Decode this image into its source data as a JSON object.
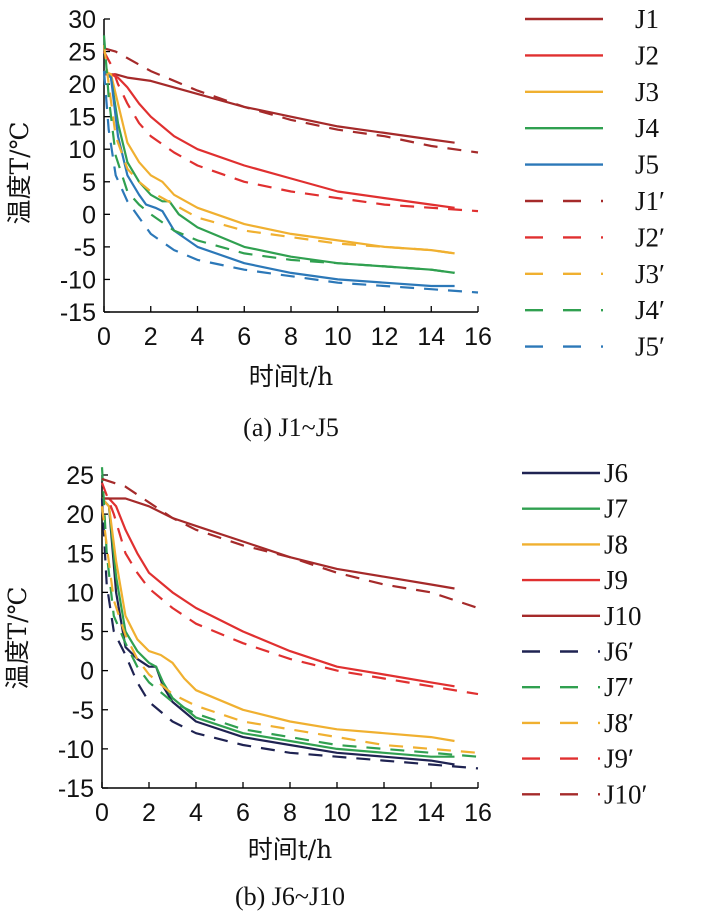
{
  "chart_data": [
    {
      "type": "line",
      "caption": "(a) J1~J5",
      "xlabel": "时间t/h",
      "ylabel": "温度T/℃",
      "xlim": [
        0,
        16
      ],
      "ylim": [
        -15,
        30
      ],
      "xticks": [
        "0",
        "2",
        "4",
        "6",
        "8",
        "10",
        "12",
        "14",
        "16"
      ],
      "yticks": [
        "30",
        "25",
        "20",
        "15",
        "10",
        "5",
        "0",
        "-5",
        "-10",
        "-15"
      ],
      "legend_position": "right",
      "series": [
        {
          "name": "J1",
          "style": "solid",
          "color": "#a52a2a",
          "x": [
            0,
            0.5,
            1,
            2,
            3,
            4,
            6,
            8,
            10,
            12,
            14,
            15
          ],
          "y": [
            21.5,
            21.5,
            21,
            20.5,
            19.5,
            18.5,
            16.5,
            15,
            13.5,
            12.5,
            11.5,
            11
          ]
        },
        {
          "name": "J2",
          "style": "solid",
          "color": "#e03030",
          "x": [
            0,
            0.3,
            0.6,
            1,
            1.5,
            2,
            3,
            4,
            6,
            8,
            10,
            12,
            14,
            15
          ],
          "y": [
            21.5,
            21.5,
            21,
            19.5,
            17,
            15,
            12,
            10,
            7.5,
            5.5,
            3.5,
            2.5,
            1.5,
            1
          ]
        },
        {
          "name": "J3",
          "style": "solid",
          "color": "#f0b030",
          "x": [
            0,
            0.3,
            0.6,
            1,
            1.5,
            2,
            2.5,
            3,
            4,
            6,
            8,
            10,
            12,
            14,
            15
          ],
          "y": [
            22,
            21.5,
            17,
            11,
            8,
            6,
            5,
            3,
            1,
            -1.5,
            -3,
            -4,
            -5,
            -5.5,
            -6
          ]
        },
        {
          "name": "J4",
          "style": "solid",
          "color": "#30a050",
          "x": [
            0,
            0.3,
            0.6,
            1,
            1.5,
            2,
            2.5,
            2.8,
            3.2,
            4,
            6,
            8,
            10,
            12,
            14,
            15
          ],
          "y": [
            22,
            21,
            14,
            8,
            5,
            3,
            2,
            2,
            0,
            -2,
            -5,
            -6.5,
            -7.5,
            -8,
            -8.5,
            -9
          ]
        },
        {
          "name": "J5",
          "style": "solid",
          "color": "#2c78b8",
          "x": [
            0,
            0.3,
            0.6,
            1,
            1.5,
            1.8,
            2.2,
            2.5,
            3,
            4,
            6,
            8,
            10,
            12,
            14,
            15
          ],
          "y": [
            22,
            21,
            12,
            6,
            3,
            1.5,
            1,
            0.5,
            -2.5,
            -5,
            -7.5,
            -9,
            -10,
            -10.5,
            -11,
            -11
          ]
        },
        {
          "name": "J1′",
          "style": "dashed",
          "color": "#a52a2a",
          "x": [
            0,
            0.5,
            1,
            2,
            4,
            6,
            8,
            10,
            12,
            14,
            16
          ],
          "y": [
            25.5,
            25,
            24,
            22,
            19,
            16.5,
            14.5,
            13,
            12,
            10.5,
            9.5
          ]
        },
        {
          "name": "J2′",
          "style": "dashed",
          "color": "#e03030",
          "x": [
            0,
            0.3,
            0.6,
            1,
            1.5,
            2,
            3,
            4,
            6,
            8,
            10,
            12,
            14,
            16
          ],
          "y": [
            25,
            23,
            20,
            17,
            14,
            12,
            9.5,
            7.5,
            5,
            3.5,
            2.5,
            1.5,
            1,
            0.5
          ]
        },
        {
          "name": "J3′",
          "style": "dashed",
          "color": "#f0b030",
          "x": [
            0,
            0.2,
            0.5,
            1,
            1.5,
            2,
            3,
            4,
            6,
            8,
            10,
            12,
            14,
            15
          ],
          "y": [
            26,
            20,
            12,
            7,
            5,
            3.5,
            1.5,
            -0.5,
            -2.5,
            -3.5,
            -4.5,
            -5,
            -5.5,
            -6
          ]
        },
        {
          "name": "J4′",
          "style": "dashed",
          "color": "#30a050",
          "x": [
            0,
            0.2,
            0.5,
            1,
            1.5,
            2,
            3,
            4,
            6,
            8,
            10,
            12,
            14,
            15
          ],
          "y": [
            27.5,
            18,
            9,
            3.5,
            1.5,
            0,
            -2.5,
            -4,
            -6,
            -7,
            -7.5,
            -8,
            -8.5,
            -9
          ]
        },
        {
          "name": "J5′",
          "style": "dashed",
          "color": "#2c78b8",
          "x": [
            0,
            0.2,
            0.5,
            1,
            1.5,
            2,
            3,
            4,
            6,
            8,
            10,
            12,
            14,
            16
          ],
          "y": [
            22,
            13,
            6,
            2,
            -0.5,
            -3,
            -5.5,
            -7,
            -8.5,
            -9.5,
            -10.5,
            -11,
            -11.5,
            -12
          ]
        }
      ]
    },
    {
      "type": "line",
      "caption": "(b) J6~J10",
      "xlabel": "时间t/h",
      "ylabel": "温度T/℃",
      "xlim": [
        0,
        16
      ],
      "ylim": [
        -15,
        25
      ],
      "xticks": [
        "0",
        "2",
        "4",
        "6",
        "8",
        "10",
        "12",
        "14",
        "16"
      ],
      "yticks": [
        "25",
        "20",
        "15",
        "10",
        "5",
        "0",
        "-5",
        "-10",
        "-15"
      ],
      "legend_position": "right",
      "series": [
        {
          "name": "J6",
          "style": "solid",
          "color": "#1f2352",
          "x": [
            0,
            0.3,
            0.6,
            1,
            1.5,
            2,
            2.3,
            2.6,
            3,
            4,
            6,
            8,
            10,
            12,
            14,
            15
          ],
          "y": [
            22,
            21,
            10,
            3,
            1.5,
            0.5,
            0.5,
            -2,
            -4,
            -6.5,
            -8.5,
            -9.5,
            -10.5,
            -11,
            -11.5,
            -12
          ]
        },
        {
          "name": "J7",
          "style": "solid",
          "color": "#30a050",
          "x": [
            0,
            0.3,
            0.6,
            1,
            1.5,
            2,
            2.3,
            2.6,
            3,
            4,
            6,
            8,
            10,
            12,
            14,
            15
          ],
          "y": [
            22,
            21,
            12,
            5,
            2.5,
            1,
            0.5,
            -1.5,
            -3.5,
            -6,
            -8,
            -9,
            -10,
            -10.5,
            -11,
            -11
          ]
        },
        {
          "name": "J8",
          "style": "solid",
          "color": "#f0b030",
          "x": [
            0,
            0.3,
            0.6,
            1,
            1.5,
            2,
            2.5,
            3,
            3.5,
            4,
            6,
            8,
            10,
            12,
            14,
            15
          ],
          "y": [
            22,
            21,
            14,
            7,
            4,
            2.5,
            2,
            1,
            -1,
            -2.5,
            -5,
            -6.5,
            -7.5,
            -8,
            -8.5,
            -9
          ]
        },
        {
          "name": "J9",
          "style": "solid",
          "color": "#e03030",
          "x": [
            0,
            0.3,
            0.6,
            1,
            1.5,
            2,
            3,
            4,
            6,
            8,
            10,
            12,
            14,
            15
          ],
          "y": [
            22,
            22,
            21,
            18,
            15,
            12.5,
            10,
            8,
            5,
            2.5,
            0.5,
            -0.5,
            -1.5,
            -2
          ]
        },
        {
          "name": "J10",
          "style": "solid",
          "color": "#a52a2a",
          "x": [
            0,
            0.5,
            1,
            2,
            3,
            4,
            6,
            8,
            10,
            12,
            14,
            15
          ],
          "y": [
            22,
            22,
            22,
            21,
            19.5,
            18.5,
            16.5,
            14.5,
            13,
            12,
            11,
            10.5
          ]
        },
        {
          "name": "J6′",
          "style": "dashed",
          "color": "#1f2352",
          "x": [
            0,
            0.2,
            0.5,
            1,
            1.5,
            2,
            3,
            4,
            6,
            8,
            10,
            12,
            14,
            16
          ],
          "y": [
            22,
            11,
            5,
            2,
            -1.5,
            -4,
            -6.5,
            -8,
            -9.5,
            -10.5,
            -11,
            -11.5,
            -12,
            -12.5
          ]
        },
        {
          "name": "J7′",
          "style": "dashed",
          "color": "#30a050",
          "x": [
            0,
            0.2,
            0.5,
            1,
            1.5,
            2,
            3,
            4,
            6,
            8,
            10,
            12,
            14,
            16
          ],
          "y": [
            26,
            15,
            7,
            3.5,
            0.5,
            -1.5,
            -4,
            -5.5,
            -7.5,
            -8.5,
            -9.5,
            -10,
            -10.5,
            -11
          ]
        },
        {
          "name": "J8′",
          "style": "dashed",
          "color": "#f0b030",
          "x": [
            0,
            0.2,
            0.5,
            1,
            1.5,
            2,
            3,
            4,
            6,
            8,
            10,
            12,
            14,
            16
          ],
          "y": [
            21,
            16,
            9,
            4.5,
            1.5,
            -0.5,
            -3,
            -4.5,
            -6.5,
            -7.5,
            -8.5,
            -9.5,
            -10,
            -10.5
          ]
        },
        {
          "name": "J9′",
          "style": "dashed",
          "color": "#e03030",
          "x": [
            0,
            0.5,
            1,
            1.5,
            2,
            3,
            4,
            6,
            8,
            10,
            12,
            14,
            16
          ],
          "y": [
            24,
            20,
            15,
            12.5,
            10.5,
            8,
            6,
            3.5,
            1.5,
            0,
            -1,
            -2,
            -3
          ]
        },
        {
          "name": "J10′",
          "style": "dashed",
          "color": "#a52a2a",
          "x": [
            0,
            0.5,
            1,
            2,
            3,
            4,
            6,
            8,
            10,
            12,
            14,
            16
          ],
          "y": [
            24.5,
            24,
            23.5,
            21.5,
            19.5,
            18,
            16,
            14.5,
            12.5,
            11,
            10,
            8
          ]
        }
      ]
    }
  ]
}
